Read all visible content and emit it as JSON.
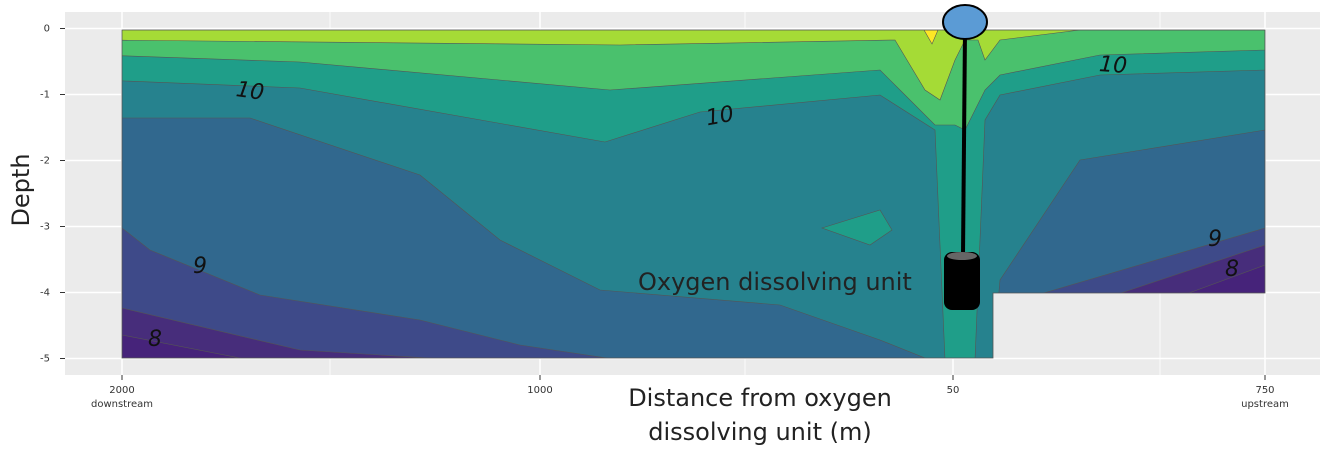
{
  "chart_data": {
    "type": "contour",
    "y_label": "Depth",
    "x_label": [
      "Distance from oxygen",
      "dissolving unit (m)"
    ],
    "ylim": [
      -5.25,
      0.25
    ],
    "yticks": [
      0,
      -1,
      -2,
      -3,
      -4,
      -5
    ],
    "x_tick_labels": [
      "2000",
      "1000",
      "50",
      "750"
    ],
    "x_tick_sublabels": [
      "downstream",
      null,
      null,
      "upstream"
    ],
    "contour_labels": [
      10,
      10,
      10,
      9,
      9,
      8,
      8
    ],
    "annotation": "Oxygen dissolving unit",
    "grid": true
  }
}
